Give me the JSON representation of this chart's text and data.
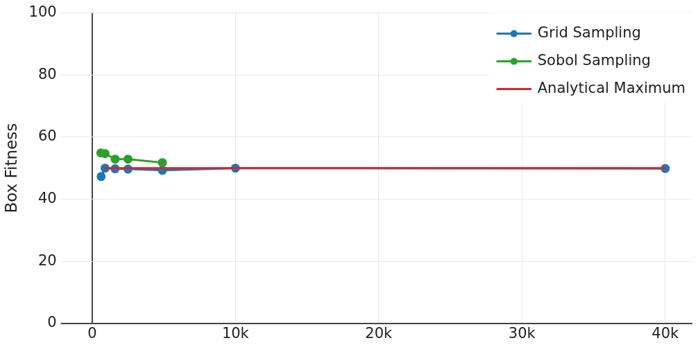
{
  "chart_data": {
    "type": "line",
    "ylabel": "Box Fitness",
    "xlim": [
      -1800,
      41900
    ],
    "ylim": [
      0,
      100
    ],
    "xticks": [
      0,
      {
        "value": 10000,
        "label": "10k"
      },
      {
        "value": 20000,
        "label": "20k"
      },
      {
        "value": 30000,
        "label": "30k"
      },
      {
        "value": 40000,
        "label": "40k"
      }
    ],
    "yticks": [
      0,
      20,
      40,
      60,
      80,
      100
    ],
    "grid": true,
    "legend": "top right",
    "line_style": "solid",
    "series": [
      {
        "name": "Grid Sampling",
        "color": "#1f77b4",
        "marker": "circle",
        "x": [
          625,
          900,
          1600,
          2500,
          4900,
          10000,
          40000
        ],
        "values": [
          47.3,
          50,
          49.8,
          49.7,
          49.3,
          50,
          49.9
        ]
      },
      {
        "name": "Sobol Sampling",
        "color": "#2ca02c",
        "marker": "circle",
        "x": [
          600,
          900,
          1600,
          2500,
          4900
        ],
        "values": [
          54.9,
          54.7,
          52.9,
          52.9,
          51.8
        ]
      },
      {
        "name": "Analytical Maximum",
        "color": "#d62728",
        "marker": "none",
        "x": [
          900,
          40000
        ],
        "values": [
          50,
          50
        ]
      }
    ]
  }
}
